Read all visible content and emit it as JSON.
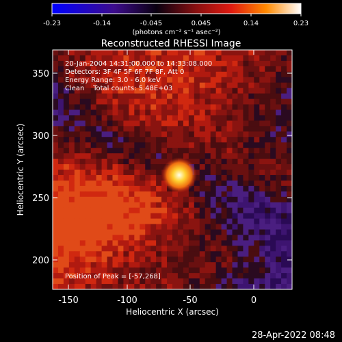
{
  "colorbar": {
    "tick_labels": [
      "-0.23",
      "-0.14",
      "-0.045",
      "0.045",
      "0.14",
      "0.23"
    ],
    "unit_label": "(photons cm⁻² s⁻¹ asec⁻²)",
    "colors": [
      "#0000ff",
      "#3d0c8c",
      "#000000",
      "#8a1010",
      "#e01a10",
      "#ff8a00",
      "#ffffff"
    ]
  },
  "title": "Reconstructed RHESSI Image",
  "info_lines": [
    "20-Jan-2004 14:31:00.000 to 14:33:08.000",
    "Detectors: 3F 4F 5F 6F 7F 8F, Att 0",
    "Energy Range: 3.0 - 6.0 keV",
    "Clean    Total counts: 5.48E+03"
  ],
  "peak_text": "Position of Peak = [-57,268]",
  "axes": {
    "xlabel": "Heliocentric X (arcsec)",
    "ylabel": "Heliocentric Y (arcsec)",
    "xticks": [
      "-150",
      "-100",
      "-50",
      "0"
    ],
    "yticks": [
      "200",
      "250",
      "300",
      "350"
    ]
  },
  "footer_date": "28-Apr-2022 08:48"
}
